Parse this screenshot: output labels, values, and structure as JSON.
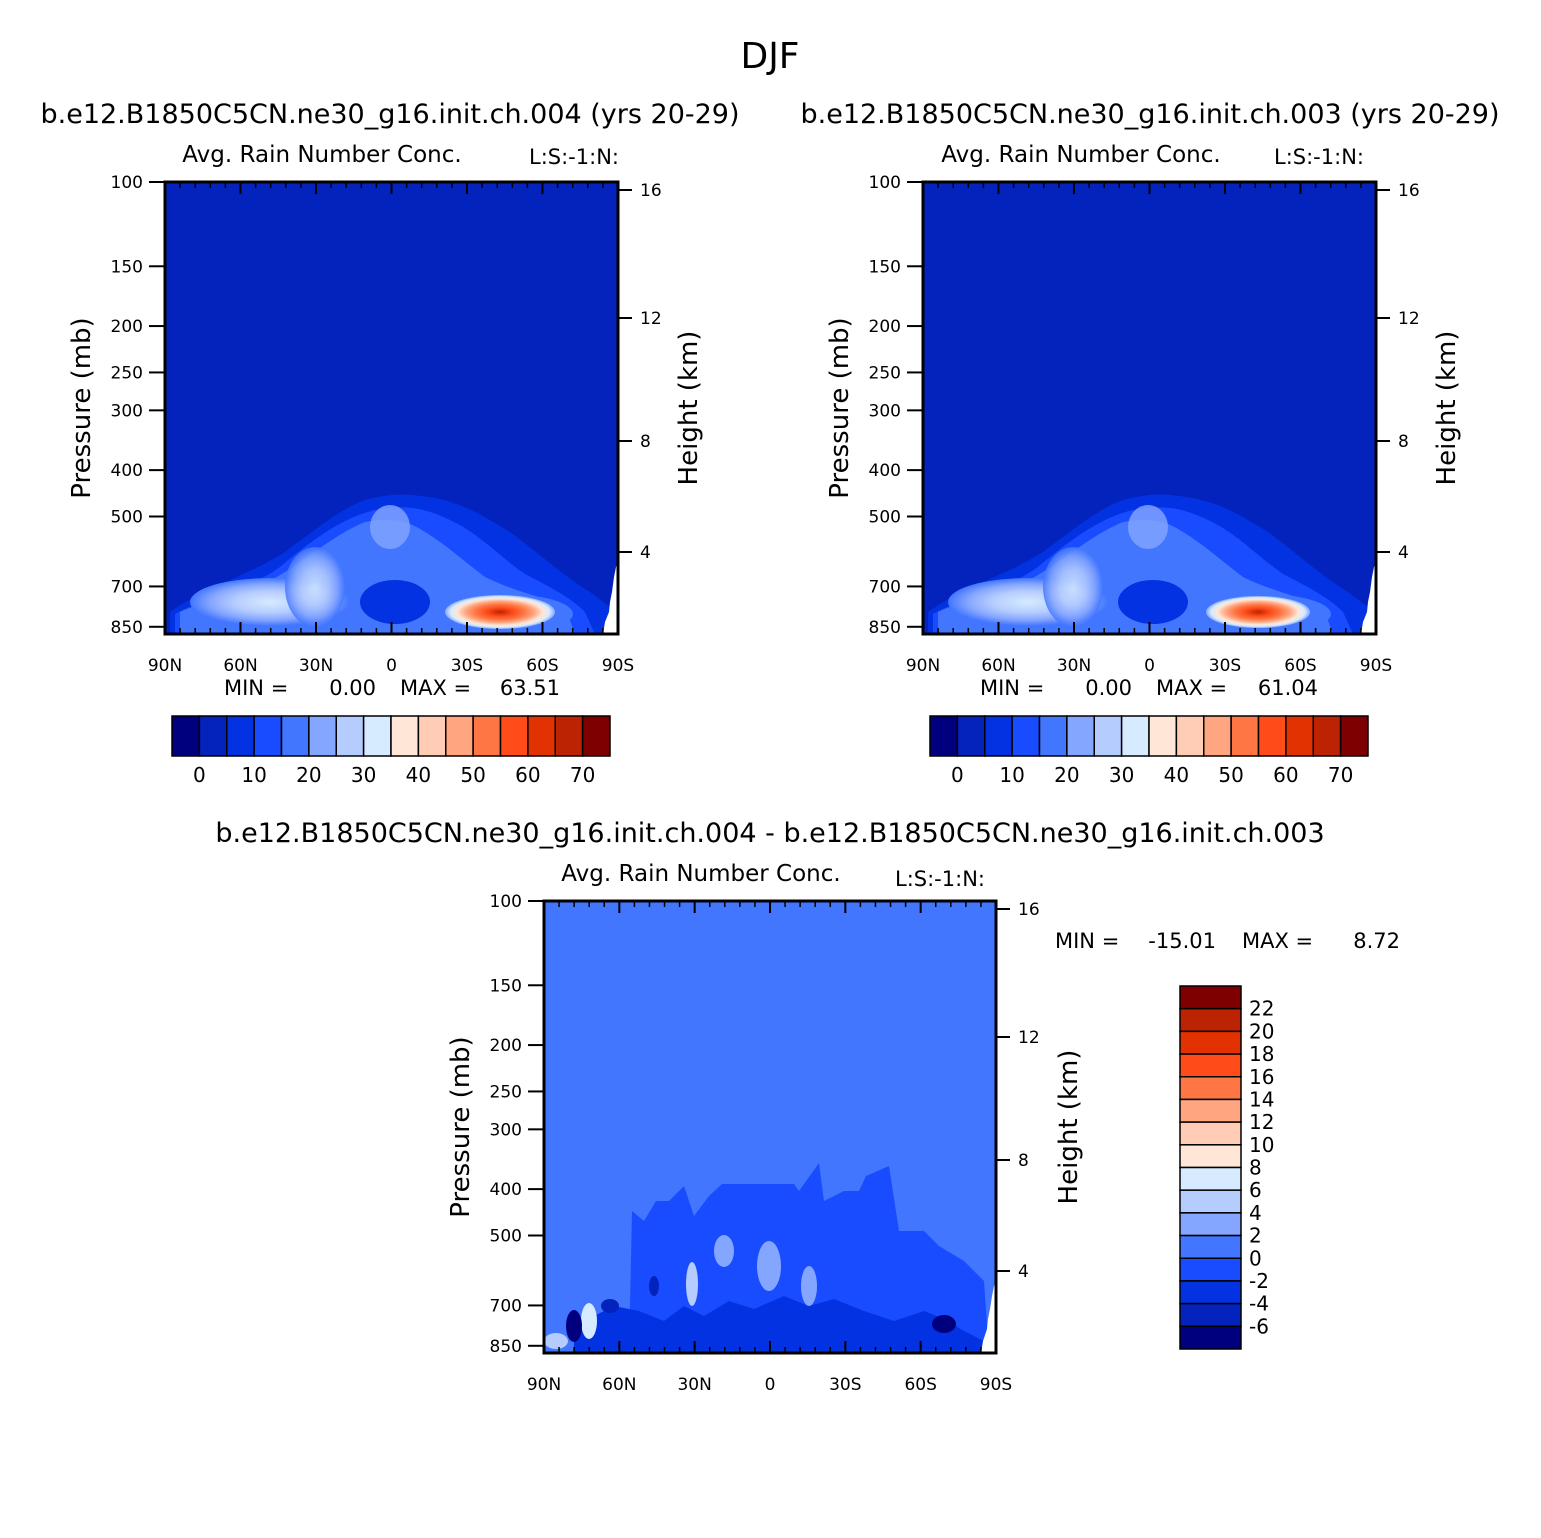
{
  "figure_title": "DJF",
  "colors": {
    "bg_field": "#0323BC",
    "diff_field": "#4276FF",
    "abs_scale": [
      "#00007F",
      "#0323BC",
      "#0232E2",
      "#1A4CFF",
      "#4276FF",
      "#85A6FF",
      "#B5CCFF",
      "#D6EBFF",
      "#FFE6D6",
      "#FFCCB5",
      "#FFA680",
      "#FF7645",
      "#FF4C19",
      "#E23202",
      "#BC2303",
      "#7F0000"
    ],
    "diff_scale": [
      "#00007F",
      "#0323BC",
      "#0232E2",
      "#1A4CFF",
      "#4276FF",
      "#85A6FF",
      "#B5CCFF",
      "#D6EBFF",
      "#FFE6D6",
      "#FFCCB5",
      "#FFA680",
      "#FF7645",
      "#FF4C19",
      "#E23202",
      "#BC2303",
      "#7F0000"
    ]
  },
  "chart_data": [
    {
      "type": "heatmap",
      "case_title": "b.e12.B1850C5CN.ne30_g16.init.ch.004 (yrs 20-29)",
      "title": "Avg. Rain Number Conc.",
      "corner_label": "L:S:-1:N:",
      "ylabel": "Pressure (mb)",
      "ylabel_right": "Height (km)",
      "x_ticks": [
        "90N",
        "60N",
        "30N",
        "0",
        "30S",
        "60S",
        "90S"
      ],
      "y_ticks": [
        "100",
        "150",
        "200",
        "250",
        "300",
        "400",
        "500",
        "700",
        "850"
      ],
      "y_ticks_right": [
        "16",
        "12",
        "8",
        "4"
      ],
      "stats": {
        "min_label": "MIN =",
        "min": "0.00",
        "max_label": "MAX =",
        "max": "63.51"
      },
      "colorbar_labels": [
        "0",
        "10",
        "20",
        "30",
        "40",
        "50",
        "60",
        "70"
      ],
      "peak_latitude": -43,
      "peak_pressure": 850
    },
    {
      "type": "heatmap",
      "case_title": "b.e12.B1850C5CN.ne30_g16.init.ch.003 (yrs 20-29)",
      "title": "Avg. Rain Number Conc.",
      "corner_label": "L:S:-1:N:",
      "ylabel": "Pressure (mb)",
      "ylabel_right": "Height (km)",
      "x_ticks": [
        "90N",
        "60N",
        "30N",
        "0",
        "30S",
        "60S",
        "90S"
      ],
      "y_ticks": [
        "100",
        "150",
        "200",
        "250",
        "300",
        "400",
        "500",
        "700",
        "850"
      ],
      "y_ticks_right": [
        "16",
        "12",
        "8",
        "4"
      ],
      "stats": {
        "min_label": "MIN =",
        "min": "0.00",
        "max_label": "MAX =",
        "max": "61.04"
      },
      "colorbar_labels": [
        "0",
        "10",
        "20",
        "30",
        "40",
        "50",
        "60",
        "70"
      ],
      "peak_latitude": -43,
      "peak_pressure": 850
    },
    {
      "type": "heatmap",
      "case_title": "b.e12.B1850C5CN.ne30_g16.init.ch.004 - b.e12.B1850C5CN.ne30_g16.init.ch.003",
      "title": "Avg. Rain Number Conc.",
      "corner_label": "L:S:-1:N:",
      "ylabel": "Pressure (mb)",
      "ylabel_right": "Height (km)",
      "x_ticks": [
        "90N",
        "60N",
        "30N",
        "0",
        "30S",
        "60S",
        "90S"
      ],
      "y_ticks": [
        "100",
        "150",
        "200",
        "250",
        "300",
        "400",
        "500",
        "700",
        "850"
      ],
      "y_ticks_right": [
        "16",
        "12",
        "8",
        "4"
      ],
      "stats": {
        "min_label": "MIN =",
        "min": "-15.01",
        "max_label": "MAX =",
        "max": "8.72"
      },
      "colorbar_labels": [
        "22",
        "20",
        "18",
        "16",
        "14",
        "12",
        "10",
        "8",
        "6",
        "4",
        "2",
        "0",
        "-2",
        "-4",
        "-6"
      ]
    }
  ]
}
